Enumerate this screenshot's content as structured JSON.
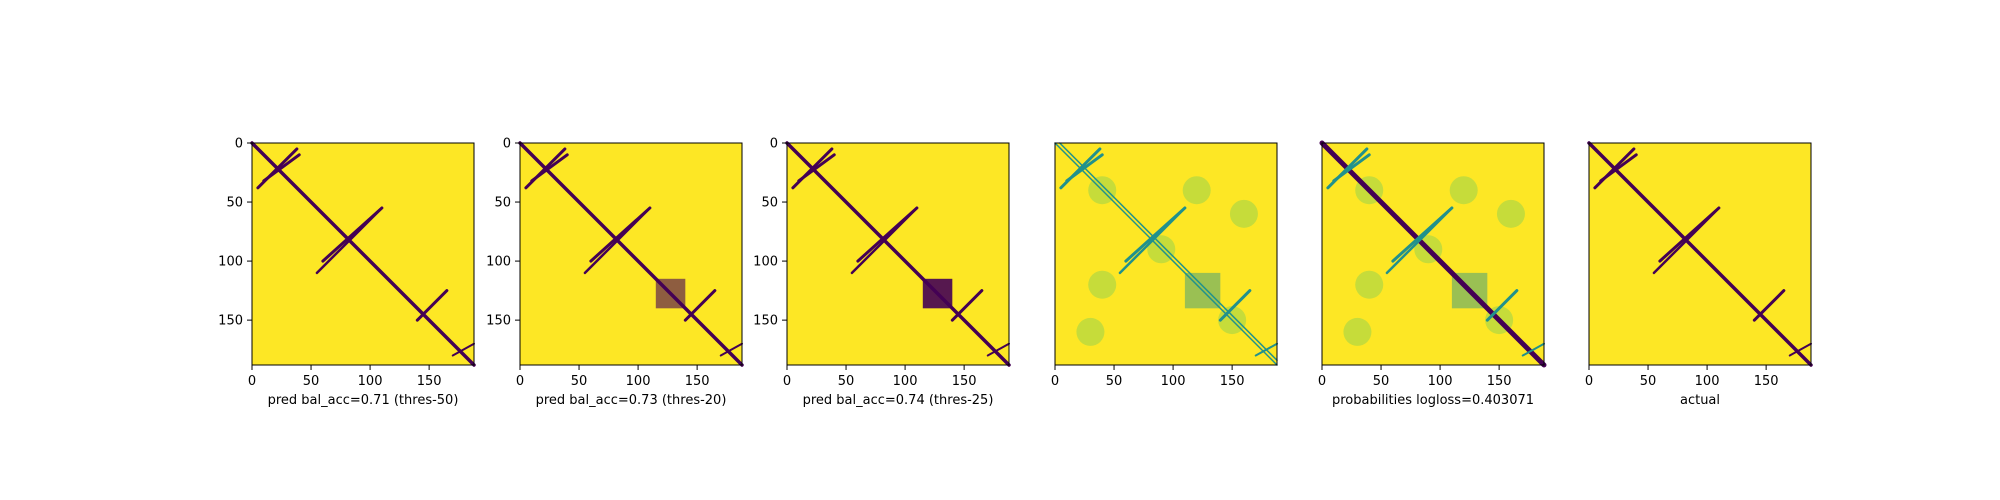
{
  "colors": {
    "background_high": "#fde725",
    "low": "#440154",
    "mid": "#21918c",
    "mid_light": "#5ec962",
    "axis": "#000000"
  },
  "chart_data": [
    {
      "type": "heatmap",
      "panel": "pred-thres-50",
      "xlabel": "pred bal_acc=0.71 (thres-50)",
      "xticks": [
        0,
        50,
        100,
        150
      ],
      "yticks": [
        0,
        50,
        100,
        150
      ],
      "xlim": [
        0,
        188
      ],
      "ylim": [
        188,
        0
      ],
      "colormap": "viridis",
      "values_binary": true
    },
    {
      "type": "heatmap",
      "panel": "pred-thres-20",
      "xlabel": "pred bal_acc=0.73 (thres-20)",
      "xticks": [
        0,
        50,
        100,
        150
      ],
      "yticks": [
        0,
        50,
        100,
        150
      ],
      "xlim": [
        0,
        188
      ],
      "ylim": [
        188,
        0
      ],
      "colormap": "viridis",
      "values_binary": true
    },
    {
      "type": "heatmap",
      "panel": "pred-thres-25",
      "xlabel": "pred bal_acc=0.74 (thres-25)",
      "xticks": [
        0,
        50,
        100,
        150
      ],
      "yticks": [
        0,
        50,
        100,
        150
      ],
      "xlim": [
        0,
        188
      ],
      "ylim": [
        188,
        0
      ],
      "colormap": "viridis",
      "values_binary": true
    },
    {
      "type": "heatmap",
      "panel": "probabilities-antidiag",
      "xlabel": "",
      "xticks": [
        0,
        50,
        100,
        150
      ],
      "yticks": [],
      "xlim": [
        0,
        188
      ],
      "ylim": [
        188,
        0
      ],
      "colormap": "viridis",
      "values_binary": false
    },
    {
      "type": "heatmap",
      "panel": "probabilities",
      "xlabel": "probabilities logloss=0.403071",
      "xticks": [
        0,
        50,
        100,
        150
      ],
      "yticks": [],
      "xlim": [
        0,
        188
      ],
      "ylim": [
        188,
        0
      ],
      "colormap": "viridis",
      "values_binary": false
    },
    {
      "type": "heatmap",
      "panel": "actual",
      "xlabel": "actual",
      "xticks": [
        0,
        50,
        100,
        150
      ],
      "yticks": [],
      "xlim": [
        0,
        188
      ],
      "ylim": [
        188,
        0
      ],
      "colormap": "viridis",
      "values_binary": true
    }
  ]
}
